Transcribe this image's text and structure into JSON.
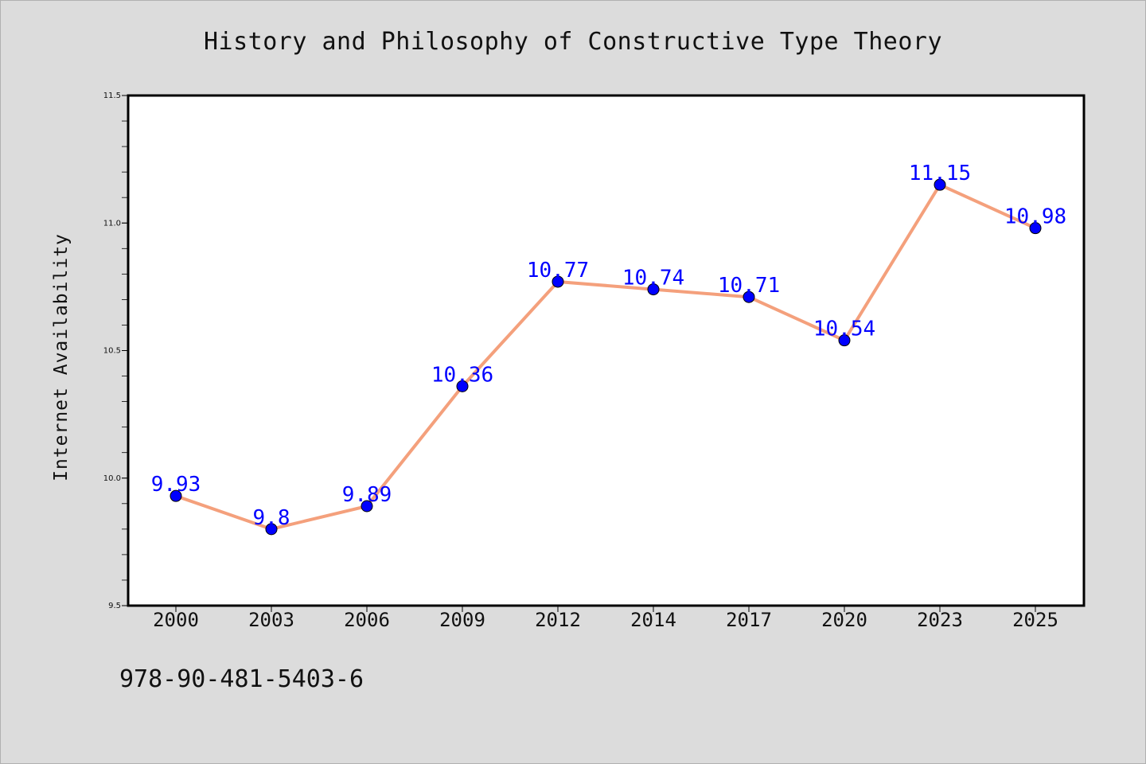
{
  "chart_data": {
    "type": "line",
    "title": "History and Philosophy of Constructive Type Theory",
    "xlabel": "",
    "ylabel": "Internet Availability",
    "categories": [
      "2000",
      "2003",
      "2006",
      "2009",
      "2012",
      "2014",
      "2017",
      "2020",
      "2023",
      "2025"
    ],
    "series": [
      {
        "values": [
          9.93,
          9.8,
          9.89,
          10.36,
          10.77,
          10.74,
          10.71,
          10.54,
          11.15,
          10.98
        ],
        "data_labels": [
          "9.93",
          "9.8",
          "9.89",
          "10.36",
          "10.77",
          "10.74",
          "10.71",
          "10.54",
          "11.15",
          "10.98"
        ],
        "line_color": "#f4a07c",
        "marker_color": "#0000ff"
      }
    ],
    "ylim": [
      9.5,
      11.5
    ],
    "yticks": [
      "9.5",
      "10.0",
      "10.5",
      "11.0",
      "11.5"
    ],
    "grid": false,
    "legend": "none"
  },
  "footer": {
    "isbn": "978-90-481-5403-6"
  },
  "colors": {
    "background": "#dcdcdc",
    "plot_background": "#ffffff",
    "line": "#f4a07c",
    "marker": "#0000ff",
    "data_label": "#0000ff"
  }
}
